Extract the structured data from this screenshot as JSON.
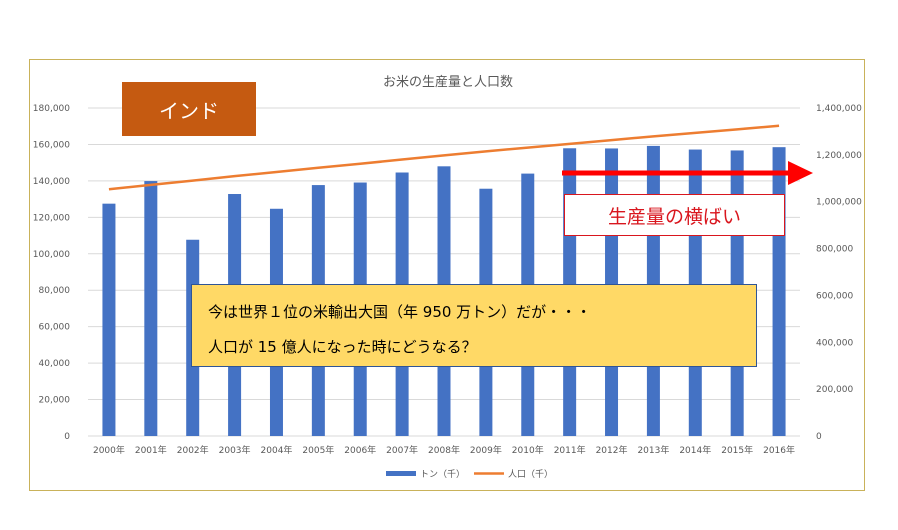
{
  "badge": {
    "country": "インド"
  },
  "callout": {
    "plateau": "生産量の横ばい"
  },
  "note": {
    "line1": "今は世界１位の米輸出大国（年 950 万トン）だが・・・",
    "line2": "人口が 15 億人になった時にどうなる？"
  },
  "colors": {
    "bars": "#4472c4",
    "line": "#ed7d31",
    "badge": "#c55a11",
    "arrow": "#ff0000",
    "note_bg": "#ffd966"
  },
  "chart_data": {
    "type": "bar+line",
    "title": "お米の生産量と人口数",
    "categories": [
      "2000年",
      "2001年",
      "2002年",
      "2003年",
      "2004年",
      "2005年",
      "2006年",
      "2007年",
      "2008年",
      "2009年",
      "2010年",
      "2011年",
      "2012年",
      "2013年",
      "2014年",
      "2015年",
      "2016年"
    ],
    "series": [
      {
        "name": "トン（千）",
        "type": "bar",
        "axis": "left",
        "values": [
          127500,
          139900,
          107700,
          132800,
          124700,
          137700,
          139100,
          144600,
          148000,
          135700,
          144000,
          157900,
          157800,
          159200,
          157200,
          156700,
          158500
        ]
      },
      {
        "name": "人口（千）",
        "type": "line",
        "axis": "right",
        "values": [
          1053000,
          1072000,
          1090000,
          1109000,
          1127000,
          1145000,
          1162000,
          1180000,
          1198000,
          1215000,
          1231000,
          1247000,
          1263000,
          1279000,
          1294000,
          1309000,
          1324000
        ]
      }
    ],
    "left_axis": {
      "ylim": [
        0,
        180000
      ],
      "ticks": [
        "0",
        "20,000",
        "40,000",
        "60,000",
        "80,000",
        "100,000",
        "120,000",
        "140,000",
        "160,000",
        "180,000"
      ]
    },
    "right_axis": {
      "ylim": [
        0,
        1400000
      ],
      "ticks": [
        "0",
        "200,000",
        "400,000",
        "600,000",
        "800,000",
        "1,000,000",
        "1,200,000",
        "1,400,000"
      ]
    },
    "legend_position": "bottom"
  }
}
